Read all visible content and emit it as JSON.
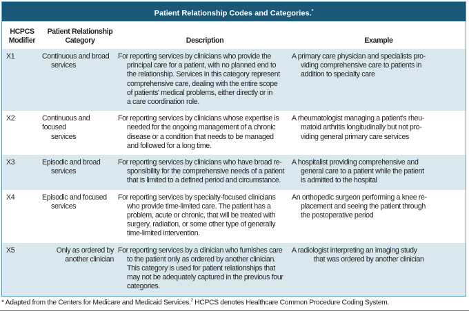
{
  "title": "Patient Relationship Codes and Categories.",
  "title_marker": "*",
  "colors": {
    "title_bar": "#1b5878",
    "shaded_row": "#d9e7ef",
    "border": "#5a9cbd"
  },
  "headers": {
    "modifier": [
      "HCPCS",
      "Modifier"
    ],
    "category": [
      "Patient Relationship",
      "Category"
    ],
    "description": "Description",
    "example": "Example"
  },
  "rows": [
    {
      "modifier": "X1",
      "category": [
        "Continuous and broad",
        "services"
      ],
      "description": [
        "For reporting services by clinicians who provide the",
        "principal care for a patient, with no planned end to",
        "the relationship. Services in this category represent",
        "comprehensive care, dealing with the entire scope",
        "of patients' medical problems, either directly or in",
        "a care coordination role."
      ],
      "example": [
        "A primary care physician and specialists pro-",
        "viding comprehensive care to patients in",
        "addition to specialty care"
      ]
    },
    {
      "modifier": "X2",
      "category": [
        "Continuous and focused",
        "services"
      ],
      "description": [
        "For reporting services by clinicians whose expertise is",
        "needed for the ongoing management of a chronic",
        "disease or a condition that needs to be managed",
        "and followed for a long time."
      ],
      "example": [
        "A rheumatologist managing a patient's rheu-",
        "matoid arthritis longitudinally but not pro-",
        "viding general primary care services"
      ]
    },
    {
      "modifier": "X3",
      "category": [
        "Episodic and broad",
        "services"
      ],
      "description": [
        "For reporting services by clinicians who have broad re-",
        "sponsibility for the comprehensive needs of a patient",
        "that is limited to a defined period and circumstance."
      ],
      "example": [
        "A hospitalist providing comprehensive and",
        "general care to a patient while the patient",
        "is admitted to the hospital"
      ]
    },
    {
      "modifier": "X4",
      "category": [
        "Episodic and focused",
        "services"
      ],
      "description": [
        "For reporting services by specialty-focused clinicians",
        "who provide time-limited care. The patient has a",
        "problem, acute or chronic, that will be treated with",
        "surgery, radiation, or some other type of generally",
        "time-limited intervention."
      ],
      "example": [
        "An orthopedic surgeon performing a knee re-",
        "placement and seeing the patient through",
        "the postoperative period"
      ]
    },
    {
      "modifier": "X5",
      "category": [
        "Only as ordered by",
        "another clinician"
      ],
      "description": [
        "For reporting services by a clinician who furnishes care",
        "to the patient only as ordered by another clinician.",
        "This category is used for patient relationships that",
        "may not be adequately captured in the previous four",
        "categories."
      ],
      "example": [
        "A radiologist interpreting an imaging study",
        "that was ordered by another clinician"
      ]
    }
  ],
  "footnote": {
    "marker": "*",
    "text_before": " Adapted from the Centers for Medicare and Medicaid Services.",
    "ref": "2",
    "text_after": " HCPCS denotes Healthcare Common Procedure Coding System."
  }
}
